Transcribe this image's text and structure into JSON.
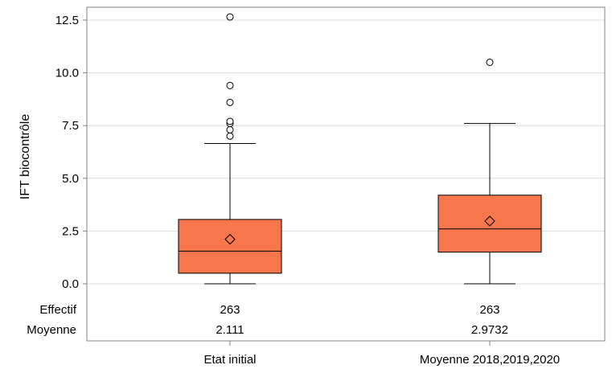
{
  "chart_data": {
    "type": "boxplot",
    "ylabel": "IFT biocontrôle",
    "ylim": [
      0,
      13
    ],
    "yticks": [
      "0.0",
      "2.5",
      "5.0",
      "7.5",
      "10.0",
      "12.5"
    ],
    "ytick_values": [
      0,
      2.5,
      5,
      7.5,
      10,
      12.5
    ],
    "grid": true,
    "box_color": "#f8764c",
    "categories": [
      "Etat initial",
      "Moyenne 2018,2019,2020"
    ],
    "boxes": [
      {
        "min": 0.0,
        "q1": 0.5,
        "median": 1.55,
        "q3": 3.05,
        "max": 6.65,
        "mean": 2.111,
        "outliers": [
          7.0,
          7.3,
          7.6,
          7.7,
          8.6,
          9.4,
          12.65
        ]
      },
      {
        "min": 0.0,
        "q1": 1.5,
        "median": 2.6,
        "q3": 4.2,
        "max": 7.6,
        "mean": 2.9732,
        "outliers": [
          10.5
        ]
      }
    ],
    "stats_table": {
      "row_labels": [
        "Effectif",
        "Moyenne"
      ],
      "rows": [
        [
          "263",
          "263"
        ],
        [
          "2.111",
          "2.9732"
        ]
      ]
    }
  }
}
